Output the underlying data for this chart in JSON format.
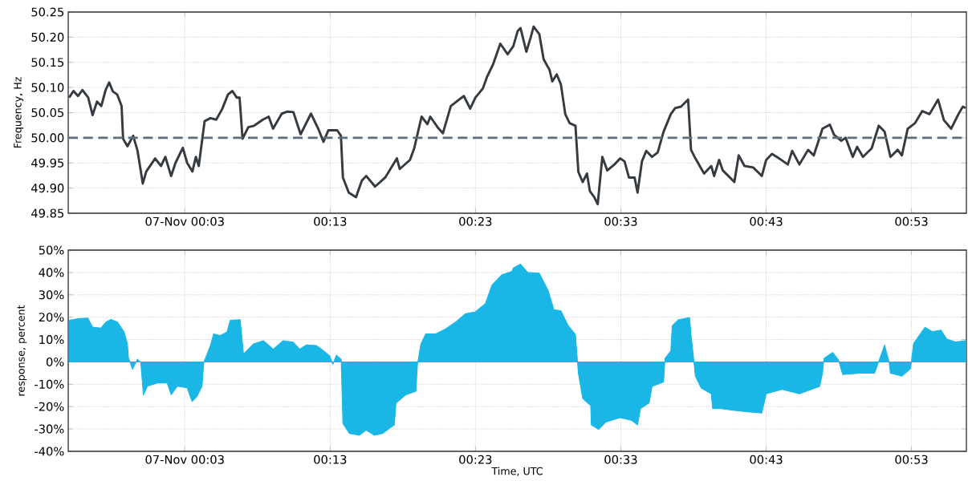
{
  "chart_data": [
    {
      "type": "line",
      "ylabel": "Frequency, Hz",
      "xlim": [
        -0.0837,
        0.9463
      ],
      "ylim": [
        49.85,
        50.25
      ],
      "xticks": [
        {
          "value": 0.05,
          "label": "07-Nov 00:03"
        },
        {
          "value": 0.2167,
          "label": "00:13"
        },
        {
          "value": 0.3833,
          "label": "00:23"
        },
        {
          "value": 0.55,
          "label": "00:33"
        },
        {
          "value": 0.7167,
          "label": "00:43"
        },
        {
          "value": 0.8833,
          "label": "00:53"
        }
      ],
      "yticks": [
        {
          "value": 49.85,
          "label": "49.85"
        },
        {
          "value": 49.9,
          "label": "49.90"
        },
        {
          "value": 49.95,
          "label": "49.95"
        },
        {
          "value": 50.0,
          "label": "50.00"
        },
        {
          "value": 50.05,
          "label": "50.05"
        },
        {
          "value": 50.1,
          "label": "50.10"
        },
        {
          "value": 50.15,
          "label": "50.15"
        },
        {
          "value": 50.2,
          "label": "50.20"
        },
        {
          "value": 50.25,
          "label": "50.25"
        }
      ],
      "grid": true,
      "line_style": "solid",
      "ref_lines": [
        {
          "axis": "y",
          "value": 50.0,
          "color": "#5f6e7a",
          "line_style": "dashed"
        }
      ],
      "series": [
        {
          "color": "#353b40",
          "x": [
            -0.0827,
            -0.0777,
            -0.0725,
            -0.0675,
            -0.0608,
            -0.0558,
            -0.0507,
            -0.0458,
            -0.0408,
            -0.0368,
            -0.0325,
            -0.0275,
            -0.0225,
            -0.0208,
            -0.0158,
            -0.0092,
            -0.0042,
            0.0018,
            0.0058,
            0.016,
            0.0227,
            0.0277,
            0.0343,
            0.0393,
            0.0477,
            0.0527,
            0.0587,
            0.0627,
            0.066,
            0.0727,
            0.0793,
            0.086,
            0.0928,
            0.0995,
            0.1045,
            0.1095,
            0.1128,
            0.1162,
            0.1228,
            0.1295,
            0.1395,
            0.1462,
            0.1512,
            0.1612,
            0.1678,
            0.1745,
            0.1828,
            0.1947,
            0.203,
            0.209,
            0.2147,
            0.2247,
            0.229,
            0.2313,
            0.238,
            0.2463,
            0.253,
            0.258,
            0.2682,
            0.2798,
            0.2932,
            0.2965,
            0.3082,
            0.3132,
            0.3215,
            0.3282,
            0.3315,
            0.3398,
            0.346,
            0.355,
            0.3617,
            0.37,
            0.3773,
            0.3833,
            0.3918,
            0.3968,
            0.4035,
            0.4118,
            0.4202,
            0.4267,
            0.4317,
            0.435,
            0.4417,
            0.4467,
            0.45,
            0.4565,
            0.4615,
            0.4682,
            0.4715,
            0.4765,
            0.4813,
            0.4863,
            0.4913,
            0.498,
            0.5013,
            0.5063,
            0.5112,
            0.5145,
            0.5195,
            0.5235,
            0.5288,
            0.5345,
            0.5427,
            0.5493,
            0.5543,
            0.5593,
            0.5658,
            0.5692,
            0.5742,
            0.5792,
            0.5858,
            0.5923,
            0.599,
            0.6073,
            0.6123,
            0.619,
            0.6272,
            0.6305,
            0.6355,
            0.6455,
            0.6537,
            0.657,
            0.6627,
            0.667,
            0.6802,
            0.6852,
            0.6918,
            0.7018,
            0.7117,
            0.7167,
            0.7233,
            0.7315,
            0.7415,
            0.7465,
            0.7548,
            0.7647,
            0.7713,
            0.7813,
            0.7897,
            0.7945,
            0.8028,
            0.8078,
            0.816,
            0.821,
            0.8277,
            0.8377,
            0.8458,
            0.8525,
            0.8592,
            0.8675,
            0.8723,
            0.879,
            0.8873,
            0.8957,
            0.904,
            0.9138,
            0.9205,
            0.9288,
            0.9372,
            0.9422,
            0.9453
          ],
          "values": [
            50.08,
            50.093,
            50.083,
            50.095,
            50.08,
            50.045,
            50.072,
            50.063,
            50.095,
            50.11,
            50.092,
            50.086,
            50.063,
            49.998,
            49.983,
            50.004,
            49.974,
            49.909,
            49.933,
            49.959,
            49.944,
            49.962,
            49.924,
            49.95,
            49.98,
            49.95,
            49.933,
            49.962,
            49.944,
            50.033,
            50.039,
            50.036,
            50.057,
            50.086,
            50.093,
            50.08,
            50.08,
            49.998,
            50.021,
            50.024,
            50.036,
            50.042,
            50.018,
            50.048,
            50.052,
            50.051,
            50.007,
            50.048,
            50.018,
            49.992,
            50.015,
            50.015,
            50.004,
            49.921,
            49.891,
            49.882,
            49.915,
            49.924,
            49.903,
            49.921,
            49.959,
            49.938,
            49.956,
            49.98,
            50.042,
            50.027,
            50.042,
            50.021,
            50.009,
            50.063,
            50.072,
            50.083,
            50.058,
            50.08,
            50.098,
            50.122,
            50.146,
            50.187,
            50.166,
            50.182,
            50.212,
            50.218,
            50.171,
            50.2,
            50.221,
            50.206,
            50.156,
            50.135,
            50.112,
            50.126,
            50.106,
            50.047,
            50.029,
            50.024,
            49.932,
            49.912,
            49.929,
            49.894,
            49.882,
            49.868,
            49.962,
            49.935,
            49.947,
            49.959,
            49.953,
            49.921,
            49.921,
            49.891,
            49.953,
            49.974,
            49.962,
            49.971,
            50.012,
            50.047,
            50.059,
            50.062,
            50.076,
            49.976,
            49.959,
            49.929,
            49.944,
            49.924,
            49.956,
            49.935,
            49.912,
            49.965,
            49.944,
            49.941,
            49.924,
            49.956,
            49.968,
            49.959,
            49.947,
            49.974,
            49.947,
            49.976,
            49.965,
            50.018,
            50.026,
            50.006,
            49.994,
            50.0,
            49.962,
            49.982,
            49.962,
            49.979,
            50.024,
            50.012,
            49.962,
            49.976,
            49.965,
            50.018,
            50.029,
            50.053,
            50.047,
            50.076,
            50.035,
            50.018,
            50.047,
            50.062,
            50.059
          ]
        }
      ]
    },
    {
      "type": "area",
      "ylabel": "response, percent",
      "xlabel": "Time, UTC",
      "xlim": [
        -0.0837,
        0.9463
      ],
      "ylim": [
        -40,
        50
      ],
      "xticks": [
        {
          "value": 0.05,
          "label": "07-Nov 00:03"
        },
        {
          "value": 0.2167,
          "label": "00:13"
        },
        {
          "value": 0.3833,
          "label": "00:23"
        },
        {
          "value": 0.55,
          "label": "00:33"
        },
        {
          "value": 0.7167,
          "label": "00:43"
        },
        {
          "value": 0.8833,
          "label": "00:53"
        }
      ],
      "yticks": [
        {
          "value": -40,
          "label": "-40%"
        },
        {
          "value": -30,
          "label": "-30%"
        },
        {
          "value": -20,
          "label": "-20%"
        },
        {
          "value": -10,
          "label": "-10%"
        },
        {
          "value": 0,
          "label": "0%"
        },
        {
          "value": 10,
          "label": "10%"
        },
        {
          "value": 20,
          "label": "20%"
        },
        {
          "value": 30,
          "label": "30%"
        },
        {
          "value": 40,
          "label": "40%"
        },
        {
          "value": 50,
          "label": "50%"
        }
      ],
      "grid": true,
      "series": [
        {
          "color": "#1ab7e6",
          "x": [
            -0.0823,
            -0.0728,
            -0.0613,
            -0.0557,
            -0.0462,
            -0.0405,
            -0.0348,
            -0.0272,
            -0.0195,
            -0.0158,
            -0.0147,
            -0.01,
            -0.0043,
            -0.0005,
            0.0025,
            0.007,
            0.0185,
            0.0298,
            0.0343,
            0.0413,
            0.0527,
            0.0583,
            0.064,
            0.0698,
            0.0717,
            0.0793,
            0.083,
            0.0907,
            0.0983,
            0.102,
            0.1135,
            0.1173,
            0.1287,
            0.14,
            0.1515,
            0.1628,
            0.1743,
            0.1818,
            0.1895,
            0.2008,
            0.2067,
            0.2162,
            0.2198,
            0.2237,
            0.2293,
            0.2313,
            0.2388,
            0.2503,
            0.2578,
            0.2673,
            0.2768,
            0.2902,
            0.2922,
            0.3035,
            0.315,
            0.3168,
            0.3207,
            0.3263,
            0.3377,
            0.3492,
            0.3605,
            0.372,
            0.3833,
            0.3947,
            0.4023,
            0.4137,
            0.4252,
            0.4268,
            0.435,
            0.4433,
            0.4565,
            0.4665,
            0.4732,
            0.4813,
            0.4897,
            0.498,
            0.5013,
            0.5063,
            0.5155,
            0.5162,
            0.5245,
            0.5328,
            0.5493,
            0.5627,
            0.5692,
            0.5725,
            0.5825,
            0.5858,
            0.599,
            0.6007,
            0.6073,
            0.609,
            0.6157,
            0.6288,
            0.6305,
            0.6338,
            0.6355,
            0.6422,
            0.6537,
            0.6553,
            0.6653,
            0.6785,
            0.6952,
            0.7117,
            0.7167,
            0.7348,
            0.7548,
            0.778,
            0.7813,
            0.783,
            0.793,
            0.7995,
            0.8045,
            0.8243,
            0.841,
            0.8525,
            0.8575,
            0.8592,
            0.8723,
            0.8823,
            0.8857,
            0.8988,
            0.9072,
            0.9172,
            0.9238,
            0.9337,
            0.9453
          ],
          "values": [
            18.6,
            19.3,
            19.6,
            15.6,
            15.1,
            17.8,
            19.0,
            17.8,
            13.3,
            8.0,
            2.0,
            -3.3,
            1.2,
            -0.3,
            -14.7,
            -10.9,
            -9.4,
            -9.4,
            -14.7,
            -10.9,
            -11.6,
            -17.7,
            -15.4,
            -10.9,
            -0.3,
            7.3,
            12.5,
            11.8,
            13.3,
            18.6,
            18.9,
            3.5,
            8.0,
            9.5,
            5.7,
            9.5,
            8.8,
            5.7,
            7.6,
            7.3,
            5.7,
            2.7,
            -1.1,
            3.0,
            1.2,
            -27.5,
            -32.0,
            -32.8,
            -30.5,
            -32.8,
            -32.0,
            -28.2,
            -18.4,
            -14.7,
            -13.1,
            -1.1,
            8.0,
            12.5,
            12.5,
            14.8,
            17.8,
            21.6,
            22.4,
            26.1,
            34.4,
            39.0,
            40.5,
            42.0,
            43.7,
            40.0,
            39.7,
            32.1,
            23.4,
            22.8,
            16.2,
            12.2,
            -5.0,
            -16.3,
            -19.6,
            -28.2,
            -30.2,
            -26.9,
            -24.9,
            -26.2,
            -28.2,
            -20.9,
            -18.3,
            -11.0,
            -9.0,
            1.6,
            4.9,
            16.2,
            18.8,
            19.9,
            12.2,
            0.3,
            -6.4,
            -11.7,
            -14.3,
            -20.9,
            -20.9,
            -21.6,
            -22.3,
            -22.9,
            -14.3,
            -12.3,
            -14.3,
            -11.0,
            -5.0,
            1.6,
            4.2,
            0.9,
            -5.7,
            -5.0,
            -5.0,
            7.5,
            0.3,
            -5.0,
            -6.4,
            -3.0,
            8.2,
            15.5,
            13.5,
            14.2,
            10.2,
            8.9,
            9.5
          ]
        }
      ]
    }
  ]
}
